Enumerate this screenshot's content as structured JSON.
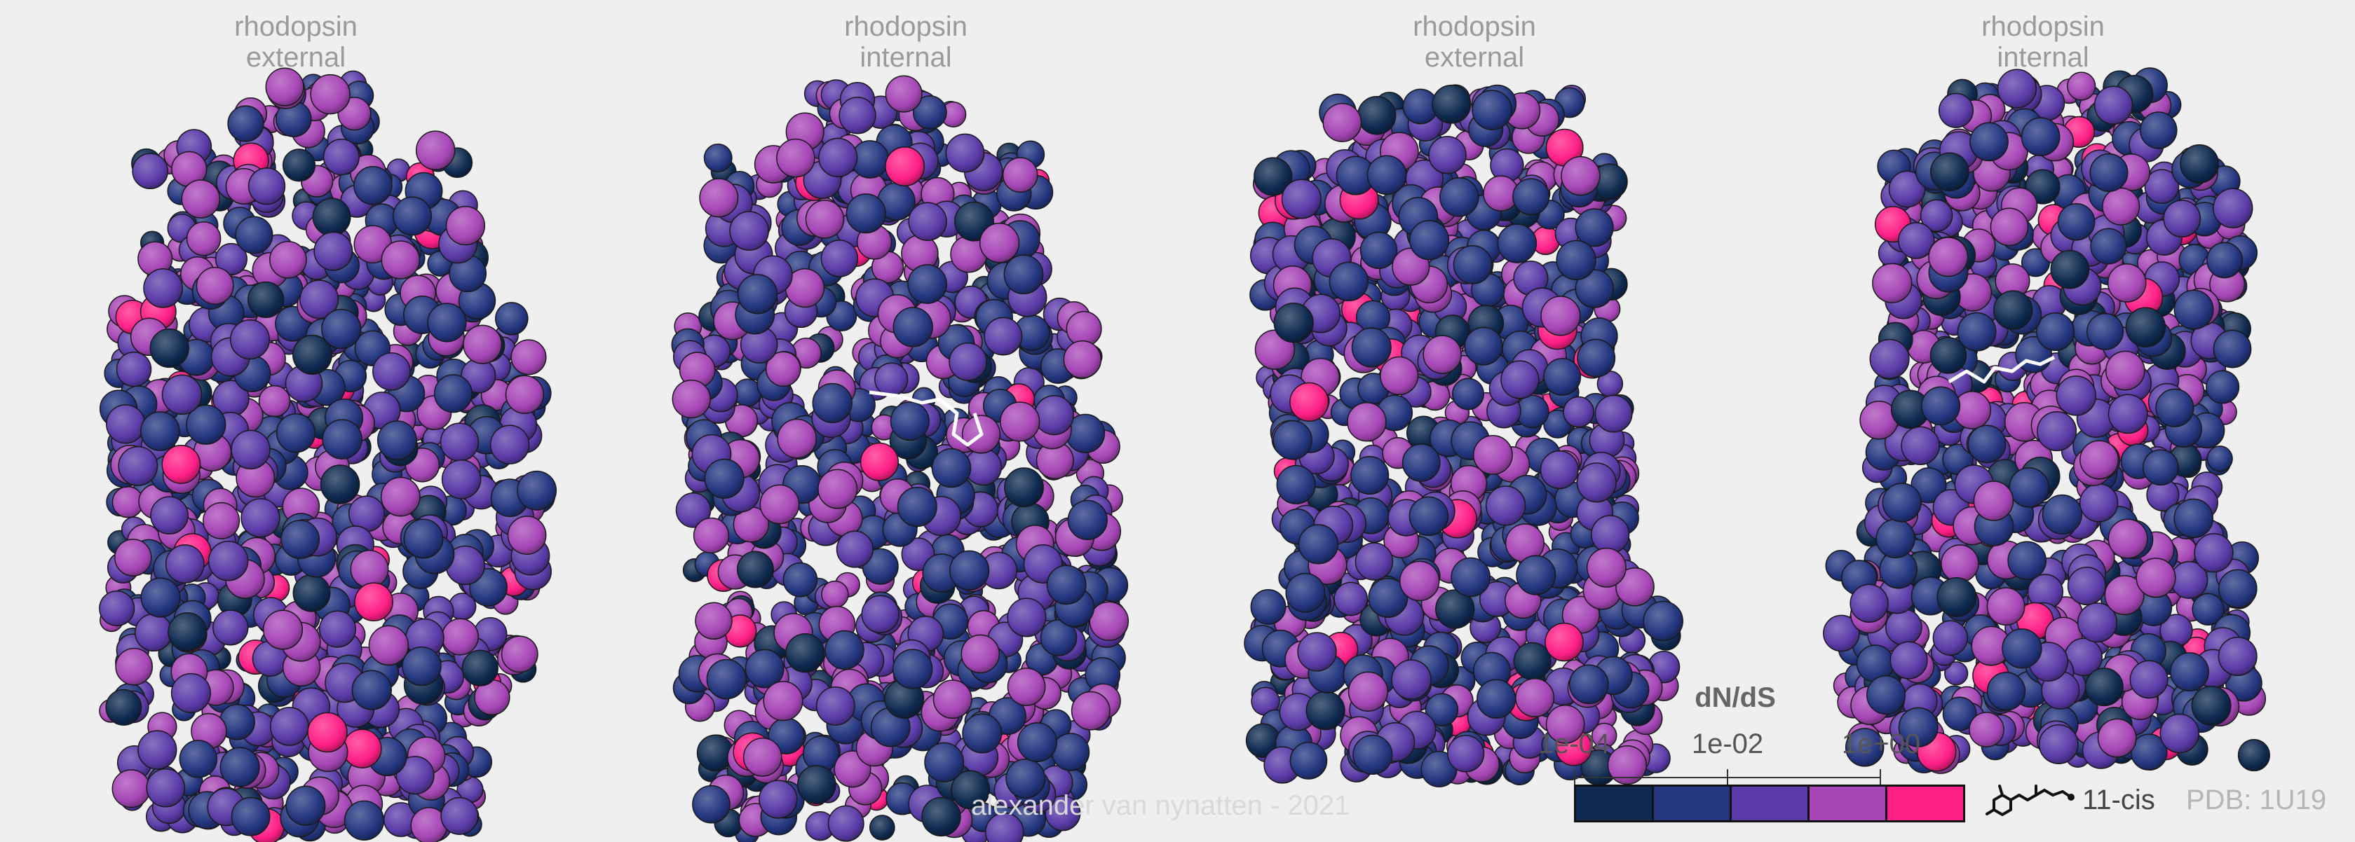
{
  "panels": [
    {
      "protein": "rhodopsin",
      "view": "external",
      "has_ligand": false
    },
    {
      "protein": "rhodopsin",
      "view": "internal",
      "has_ligand": true
    },
    {
      "protein": "rhodopsin",
      "view": "external",
      "has_ligand": false
    },
    {
      "protein": "rhodopsin",
      "view": "internal",
      "has_ligand": true
    }
  ],
  "legend": {
    "title": "dN/dS",
    "tick_labels": [
      "1e-04",
      "1e-02",
      "1e+00"
    ],
    "colors": [
      "#0f2a50",
      "#24367f",
      "#5b3ba8",
      "#a646b6",
      "#ff1f86"
    ]
  },
  "ligand_label": "11-cis",
  "pdb_label": "PDB: 1U19",
  "credit": "alexander van nynatten - 2021"
}
